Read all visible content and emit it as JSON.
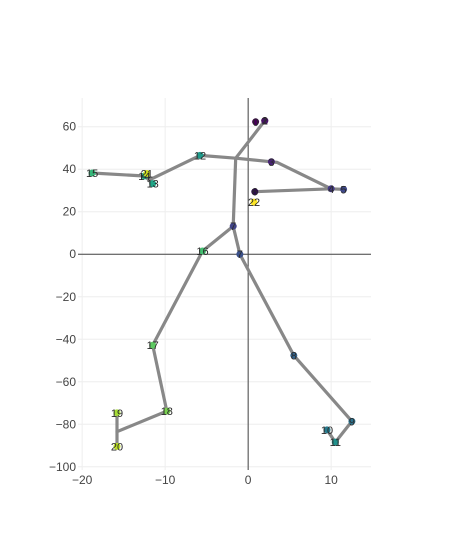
{
  "chart_data": {
    "type": "scatter",
    "title": "",
    "xlabel": "",
    "ylabel": "",
    "xlim": [
      -20.5,
      14.8
    ],
    "ylim": [
      -101.5,
      73.5
    ],
    "x_ticks": [
      -20,
      -10,
      0,
      10
    ],
    "y_ticks": [
      -100,
      -80,
      -60,
      -40,
      -20,
      0,
      20,
      40,
      60
    ],
    "x_tick_labels": [
      "−20",
      "−10",
      "0",
      "10"
    ],
    "y_tick_labels": [
      "−100",
      "−80",
      "−60",
      "−40",
      "−20",
      "0",
      "20",
      "40",
      "60"
    ],
    "grid": true,
    "zero_lines": true,
    "points": [
      {
        "id": "0",
        "x": 0.9,
        "y": 62.3,
        "color": "#440154"
      },
      {
        "id": "1",
        "x": 2.0,
        "y": 62.8,
        "color": "#440154"
      },
      {
        "id": "2",
        "x": 2.0,
        "y": 62.8,
        "color": "#471365"
      },
      {
        "id": "3",
        "x": 2.8,
        "y": 43.5,
        "color": "#482475"
      },
      {
        "id": "4",
        "x": 10.0,
        "y": 30.8,
        "color": "#443983"
      },
      {
        "id": "5",
        "x": 11.5,
        "y": 30.5,
        "color": "#3f4889"
      },
      {
        "id": "6",
        "x": 0.8,
        "y": 29.4,
        "color": "#2c0c4b"
      },
      {
        "id": "7",
        "x": -1.8,
        "y": 13.2,
        "color": "#414487"
      },
      {
        "id": "7",
        "x": -1.0,
        "y": 0.0,
        "color": "#3b518b"
      },
      {
        "id": "8",
        "x": 5.5,
        "y": -47.6,
        "color": "#33638d"
      },
      {
        "id": "9",
        "x": 12.5,
        "y": -78.6,
        "color": "#2c728e"
      },
      {
        "id": "10",
        "x": 9.5,
        "y": -82.6,
        "color": "#287c8e"
      },
      {
        "id": "11",
        "x": 10.5,
        "y": -88.4,
        "color": "#21918c"
      },
      {
        "id": "12",
        "x": -5.8,
        "y": 46.5,
        "color": "#1f9a8a"
      },
      {
        "id": "13",
        "x": -11.5,
        "y": 33.2,
        "color": "#20a486"
      },
      {
        "id": "14",
        "x": -12.5,
        "y": 36.8,
        "color": "#22a884"
      },
      {
        "id": "15",
        "x": -18.8,
        "y": 38.2,
        "color": "#35b779"
      },
      {
        "id": "16",
        "x": -5.5,
        "y": 1.5,
        "color": "#44bf70"
      },
      {
        "id": "17",
        "x": -11.5,
        "y": -42.8,
        "color": "#5ec962"
      },
      {
        "id": "18",
        "x": -9.8,
        "y": -73.8,
        "color": "#7ad151"
      },
      {
        "id": "19",
        "x": -15.8,
        "y": -74.6,
        "color": "#a5db36"
      },
      {
        "id": "20",
        "x": -15.8,
        "y": -90.4,
        "color": "#bddf26"
      },
      {
        "id": "21",
        "x": -12.2,
        "y": 38.0,
        "color": "#d2e21b"
      },
      {
        "id": "22",
        "x": 0.7,
        "y": 24.5,
        "color": "#fde725"
      }
    ],
    "skeleton": [
      [
        [
          -18.8,
          38.2
        ],
        [
          -12.5,
          36.8
        ],
        [
          -11.5,
          33.5
        ],
        [
          -12.0,
          34.8
        ],
        [
          -5.8,
          46.5
        ],
        [
          -1.5,
          45.2
        ],
        [
          2.8,
          43.5
        ],
        [
          3.5,
          43.2
        ],
        [
          10.0,
          30.8
        ],
        [
          11.5,
          30.5
        ],
        [
          10.0,
          30.8
        ],
        [
          0.8,
          29.4
        ]
      ],
      [
        [
          -1.5,
          45.2
        ],
        [
          2.0,
          62.8
        ]
      ],
      [
        [
          -1.5,
          45.2
        ],
        [
          -1.8,
          13.2
        ],
        [
          -1.0,
          0.0
        ],
        [
          5.5,
          -47.6
        ],
        [
          12.5,
          -78.6
        ],
        [
          10.5,
          -88.4
        ],
        [
          9.5,
          -82.6
        ]
      ],
      [
        [
          -1.8,
          13.2
        ],
        [
          -5.5,
          1.5
        ],
        [
          -11.5,
          -42.8
        ],
        [
          -9.8,
          -73.8
        ],
        [
          -15.8,
          -83.5
        ],
        [
          -15.8,
          -90.4
        ]
      ],
      [
        [
          -15.8,
          -83.5
        ],
        [
          -15.8,
          -74.6
        ]
      ]
    ]
  }
}
